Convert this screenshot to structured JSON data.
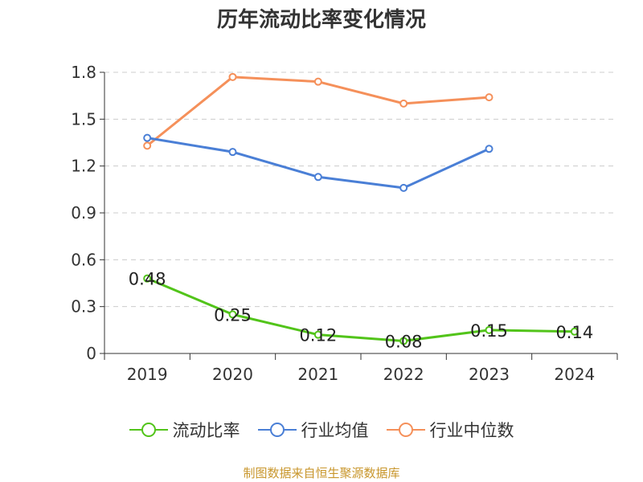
{
  "chart_data": {
    "type": "line",
    "title": "历年流动比率变化情况",
    "categories": [
      "2019",
      "2020",
      "2021",
      "2022",
      "2023",
      "2024"
    ],
    "y_ticks": [
      "0",
      "0.3",
      "0.6",
      "0.9",
      "1.2",
      "1.5",
      "1.8"
    ],
    "ylim": [
      0,
      1.8
    ],
    "grid": true,
    "legend_position": "bottom",
    "series": [
      {
        "name": "流动比率",
        "color": "#52c41a",
        "values": [
          0.48,
          0.25,
          0.12,
          0.08,
          0.15,
          0.14
        ],
        "labels": [
          "0.48",
          "0.25",
          "0.12",
          "0.08",
          "0.15",
          "0.14"
        ]
      },
      {
        "name": "行业均值",
        "color": "#4a7fd6",
        "values": [
          1.38,
          1.29,
          1.13,
          1.06,
          1.31,
          null
        ]
      },
      {
        "name": "行业中位数",
        "color": "#f5905a",
        "values": [
          1.33,
          1.77,
          1.74,
          1.6,
          1.64,
          null
        ]
      }
    ]
  },
  "footer": {
    "source": "制图数据来自恒生聚源数据库"
  }
}
